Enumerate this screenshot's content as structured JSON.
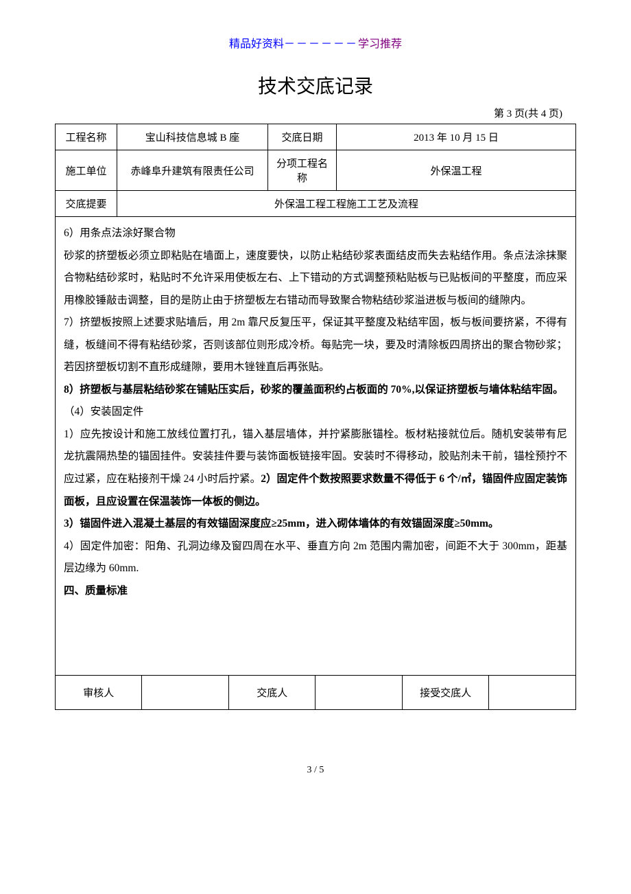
{
  "header": {
    "text_blue1": "精品好资料",
    "dashes": "－－－－－－",
    "text_purple": "学习推荐"
  },
  "title": "技术交底记录",
  "page_info": "第 3 页(共 4 页)",
  "info_table": {
    "row1": {
      "label1": "工程名称",
      "value1": "宝山科技信息城 B 座",
      "label2": "交底日期",
      "value2": "2013 年 10 月 15 日"
    },
    "row2": {
      "label1": "施工单位",
      "value1": "赤峰阜升建筑有限责任公司",
      "label2": "分项工程名称",
      "value2": "外保温工程"
    },
    "row3": {
      "label1": "交底提要",
      "value1": "外保温工程工程施工工艺及流程"
    }
  },
  "content": {
    "p1": "6）用条点法涂好聚合物",
    "p2": "砂浆的挤塑板必须立即粘贴在墙面上，速度要快，以防止粘结砂浆表面结皮而失去粘结作用。条点法涂抹聚合物粘结砂浆时，粘贴时不允许采用使板左右、上下错动的方式调整预粘贴板与已贴板间的平整度，而应采用橡胶锤敲击调整，目的是防止由于挤塑板左右错动而导致聚合物粘结砂浆溢进板与板间的缝隙内。",
    "p3": "7）挤塑板按照上述要求贴墙后，用 2m 靠尺反复压平，保证其平整度及粘结牢固，板与板间要挤紧，不得有缝，板缝间不得有粘结砂浆，否则该部位则形成冷桥。每贴完一块，要及时清除板四周挤出的聚合物砂浆；若因挤塑板切割不直形成缝隙，要用木锉锉直后再张贴。",
    "p4_bold": "8）挤塑板与基层粘结砂浆在铺贴压实后，砂浆的覆盖面积约占板面的 70%,以保证挤塑板与墙体粘结牢固。",
    "p5": "（4）安装固定件",
    "p6a": "1）应先按设计和施工放线位置打孔，锚入基层墙体，并拧紧膨胀锚栓。板材粘接就位后。随机安装带有尼龙抗震隔热垫的锚固挂件。安装挂件要与装饰面板链接牢固。安装时不得移动，胶贴剂未干前，锚栓预拧不应过紧，应在粘接剂干燥 24 小时后拧紧。",
    "p6b_bold": "2）固定件个数按照要求数量不得低于 6 个/㎡，锚固件应固定装饰面板，且应设置在保温装饰一体板的侧边。",
    "p7_bold": "3）锚固件进入混凝土基层的有效锚固深度应≥25mm，进入砌体墙体的有效锚固深度≥50mm。",
    "p8": "4）固定件加密：阳角、孔洞边缘及窗四周在水平、垂直方向 2m 范围内需加密，间距不大于 300mm，距基层边缘为 60mm.",
    "p9_bold": "四、质量标准"
  },
  "sign_table": {
    "c1": "审核人",
    "c2": "",
    "c3": "交底人",
    "c4": "",
    "c5": "接受交底人",
    "c6": ""
  },
  "footer": "3 / 5"
}
